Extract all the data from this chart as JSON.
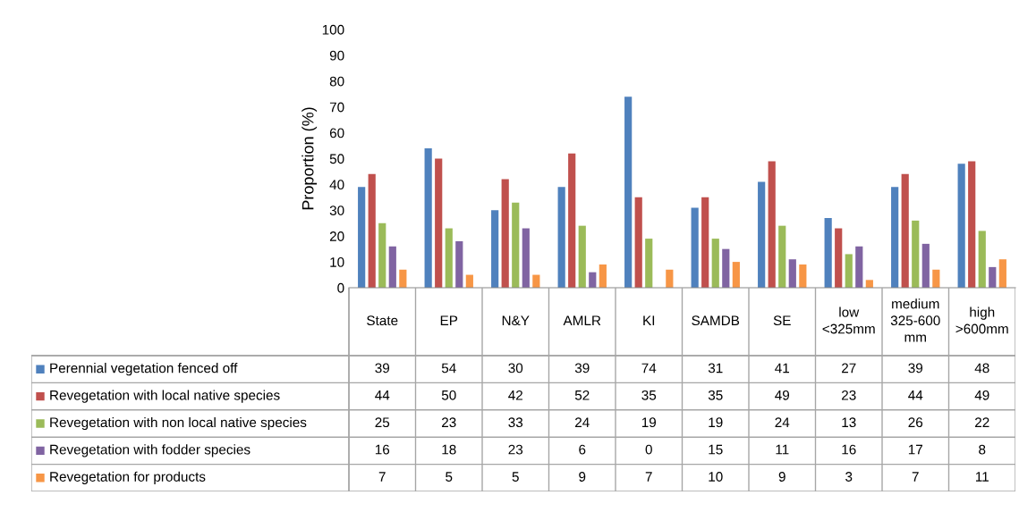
{
  "chart_data": {
    "type": "bar",
    "ylabel": "Proportion (%)",
    "categories": [
      "State",
      "EP",
      "N&Y",
      "AMLR",
      "KI",
      "SAMDB",
      "SE",
      "low\n<325mm",
      "medium\n325-600\nmm",
      "high\n>600mm"
    ],
    "series": [
      {
        "name": "Perennial vegetation fenced off",
        "color": "#4f81bd",
        "values": [
          39,
          54,
          30,
          39,
          74,
          31,
          41,
          27,
          39,
          48
        ]
      },
      {
        "name": "Revegetation with local native species",
        "color": "#c0504d",
        "values": [
          44,
          50,
          42,
          52,
          35,
          35,
          49,
          23,
          44,
          49
        ]
      },
      {
        "name": "Revegetation with non local native species",
        "color": "#9bbb59",
        "values": [
          25,
          23,
          33,
          24,
          19,
          19,
          24,
          13,
          26,
          22
        ]
      },
      {
        "name": "Revegetation with fodder species",
        "color": "#8064a2",
        "values": [
          16,
          18,
          23,
          6,
          0,
          15,
          11,
          16,
          17,
          8
        ]
      },
      {
        "name": "Revegetation for products",
        "color": "#f79646",
        "values": [
          7,
          5,
          5,
          9,
          7,
          10,
          9,
          3,
          7,
          11
        ]
      }
    ],
    "ylim": [
      0,
      100
    ],
    "yticks": [
      0,
      10,
      20,
      30,
      40,
      50,
      60,
      70,
      80,
      90,
      100
    ],
    "grid": false,
    "legend": "bottom",
    "data_labels": true
  }
}
